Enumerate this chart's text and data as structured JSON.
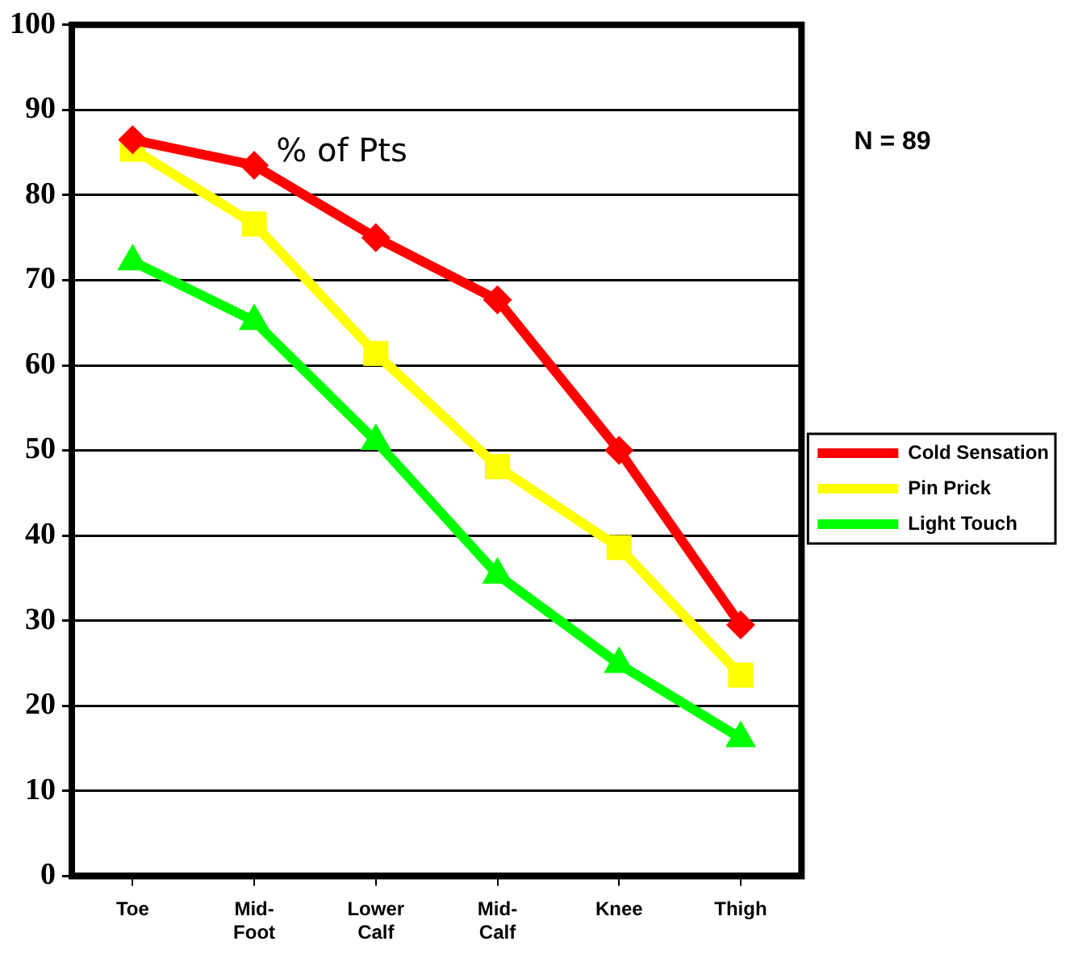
{
  "chart_data": {
    "type": "line",
    "ylabel": "% of Pts",
    "annotations": [
      "N = 89"
    ],
    "categories": [
      "Toe",
      "Mid-Foot",
      "Lower Calf",
      "Mid-Calf",
      "Knee",
      "Thigh"
    ],
    "series": [
      {
        "name": "Cold Sensation",
        "color": "#ff0000",
        "marker": "diamond",
        "values": [
          86.5,
          83.5,
          75,
          67.7,
          50,
          29.5
        ]
      },
      {
        "name": "Pin Prick",
        "color": "#ffff00",
        "marker": "square",
        "values": [
          85.4,
          76.6,
          61.4,
          48.1,
          38.6,
          23.6
        ]
      },
      {
        "name": "Light Touch",
        "color": "#00ff00",
        "marker": "triangle",
        "values": [
          72.2,
          65.2,
          51.1,
          35.4,
          24.9,
          16.2
        ]
      }
    ],
    "ylim": [
      0,
      100
    ],
    "yticks": [
      0,
      10,
      20,
      30,
      40,
      50,
      60,
      70,
      80,
      90,
      100
    ],
    "grid": "y",
    "legend": "right",
    "line_style": "solid"
  }
}
